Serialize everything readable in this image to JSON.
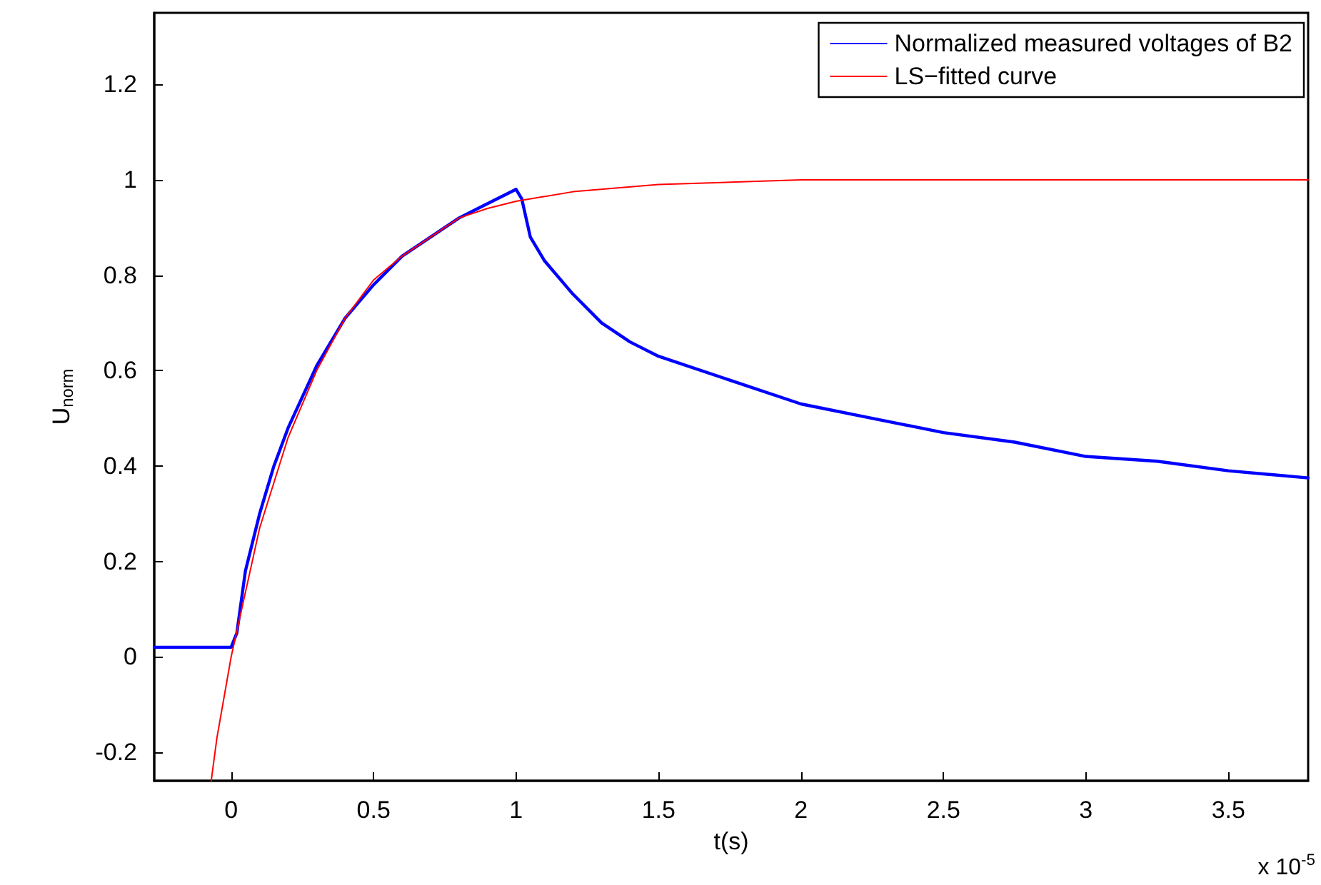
{
  "chart_data": {
    "type": "line",
    "xlabel": "t(s)",
    "ylabel": "U$_{norm}$",
    "annotations": [
      "x 10$^{-5}$"
    ],
    "xlim": [
      -0.27,
      3.78
    ],
    "xticks": [
      0,
      0.5,
      1,
      1.5,
      2,
      2.5,
      3,
      3.5
    ],
    "ylim": [
      -0.26,
      1.35
    ],
    "yticks": [
      -0.2,
      0,
      0.2,
      0.4,
      0.6,
      0.8,
      1,
      1.2
    ],
    "grid": false,
    "legend": "top right",
    "marker": "none",
    "line_style": "solid",
    "series": [
      {
        "name": "Normalized measured voltages of B2",
        "color": "#0000ff",
        "x": [
          -0.27,
          -0.2,
          -0.1,
          0,
          0.02,
          0.05,
          0.1,
          0.15,
          0.2,
          0.3,
          0.4,
          0.5,
          0.6,
          0.7,
          0.8,
          0.9,
          1.0,
          1.02,
          1.05,
          1.1,
          1.2,
          1.3,
          1.4,
          1.5,
          1.75,
          2,
          2.25,
          2.5,
          2.75,
          3,
          3.25,
          3.5,
          3.78
        ],
        "values": [
          0.02,
          0.02,
          0.02,
          0.02,
          0.05,
          0.18,
          0.3,
          0.4,
          0.48,
          0.61,
          0.71,
          0.78,
          0.84,
          0.88,
          0.92,
          0.95,
          0.98,
          0.96,
          0.88,
          0.83,
          0.76,
          0.7,
          0.66,
          0.63,
          0.58,
          0.53,
          0.5,
          0.47,
          0.45,
          0.42,
          0.41,
          0.39,
          0.375
        ]
      },
      {
        "name": "LS−fitted curve",
        "color": "#ff0000",
        "x": [
          -0.07,
          -0.05,
          0,
          0.1,
          0.2,
          0.3,
          0.4,
          0.5,
          0.6,
          0.7,
          0.8,
          0.9,
          1,
          1.2,
          1.5,
          2,
          3.78
        ],
        "values": [
          -0.26,
          -0.17,
          0,
          0.27,
          0.46,
          0.6,
          0.71,
          0.79,
          0.84,
          0.88,
          0.92,
          0.94,
          0.955,
          0.975,
          0.99,
          1.0,
          1.0
        ]
      }
    ]
  }
}
